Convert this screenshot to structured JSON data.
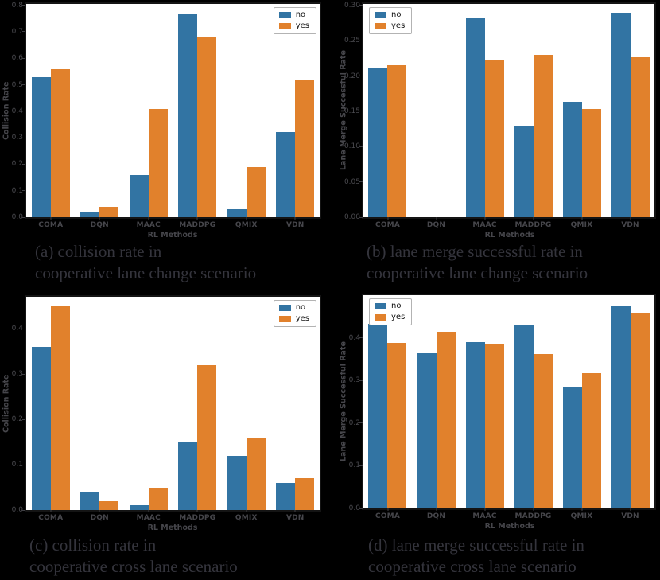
{
  "page": {
    "background": "#000000"
  },
  "colors": {
    "bar_no": "#3274a3",
    "bar_yes": "#e1812c",
    "plot_background": "#ffffff",
    "axis_text": "#4a4a4f",
    "caption_text": "#34343c",
    "legend_text": "#111111",
    "legend_border": "#b3b3b3"
  },
  "legend": {
    "labels": [
      "no",
      "yes"
    ]
  },
  "chart_data": [
    {
      "type": "bar",
      "xlabel": "RL Methods",
      "ylabel": "Collision Rate",
      "categories": [
        "COMA",
        "DQN",
        "MAAC",
        "MADDPG",
        "QMIX",
        "VDN"
      ],
      "series": [
        {
          "name": "no",
          "values": [
            0.53,
            0.02,
            0.16,
            0.77,
            0.03,
            0.32
          ]
        },
        {
          "name": "yes",
          "values": [
            0.56,
            0.04,
            0.41,
            0.68,
            0.19,
            0.52
          ]
        }
      ],
      "ylim": [
        0,
        0.805
      ],
      "yticks": [
        "0.0",
        "0.1",
        "0.2",
        "0.3",
        "0.4",
        "0.5",
        "0.6",
        "0.7",
        "0.8"
      ],
      "grid": false,
      "legend_position": "top-right",
      "caption_line1": "(a) collision rate in",
      "caption_line2": "cooperative lane change scenario"
    },
    {
      "type": "bar",
      "xlabel": "RL Methods",
      "ylabel": "Lane Merge Successful Rate",
      "categories": [
        "COMA",
        "DQN",
        "MAAC",
        "MADDPG",
        "QMIX",
        "VDN"
      ],
      "series": [
        {
          "name": "no",
          "values": [
            0.212,
            0.0,
            0.283,
            0.13,
            0.163,
            0.29
          ]
        },
        {
          "name": "yes",
          "values": [
            0.215,
            0.0,
            0.223,
            0.23,
            0.153,
            0.226
          ]
        }
      ],
      "ylim": [
        0,
        0.302
      ],
      "yticks": [
        "0.00",
        "0.05",
        "0.10",
        "0.15",
        "0.20",
        "0.25",
        "0.30"
      ],
      "grid": false,
      "legend_position": "top-left",
      "caption_line1": "(b) lane merge successful rate in",
      "caption_line2": "cooperative lane change scenario"
    },
    {
      "type": "bar",
      "xlabel": "RL Methods",
      "ylabel": "Collision Rate",
      "categories": [
        "COMA",
        "DQN",
        "MAAC",
        "MADDPG",
        "QMIX",
        "VDN"
      ],
      "series": [
        {
          "name": "no",
          "values": [
            0.36,
            0.04,
            0.01,
            0.15,
            0.12,
            0.06
          ]
        },
        {
          "name": "yes",
          "values": [
            0.45,
            0.02,
            0.05,
            0.32,
            0.16,
            0.07
          ]
        }
      ],
      "ylim": [
        0,
        0.471
      ],
      "yticks": [
        "0.0",
        "0.1",
        "0.2",
        "0.3",
        "0.4"
      ],
      "grid": false,
      "legend_position": "top-right",
      "caption_line1": "(c) collision rate in",
      "caption_line2": "cooperative cross lane scenario"
    },
    {
      "type": "bar",
      "xlabel": "RL Methods",
      "ylabel": "Lane Merge Successful Rate",
      "categories": [
        "COMA",
        "DQN",
        "MAAC",
        "MADDPG",
        "QMIX",
        "VDN"
      ],
      "series": [
        {
          "name": "no",
          "values": [
            0.432,
            0.364,
            0.39,
            0.429,
            0.285,
            0.476
          ]
        },
        {
          "name": "yes",
          "values": [
            0.388,
            0.414,
            0.385,
            0.362,
            0.317,
            0.457
          ]
        }
      ],
      "ylim": [
        0,
        0.5
      ],
      "yticks": [
        "0.0",
        "0.1",
        "0.2",
        "0.3",
        "0.4"
      ],
      "grid": false,
      "legend_position": "top-left",
      "caption_line1": "(d) lane merge successful rate in",
      "caption_line2": "cooperative cross lane scenario"
    }
  ]
}
